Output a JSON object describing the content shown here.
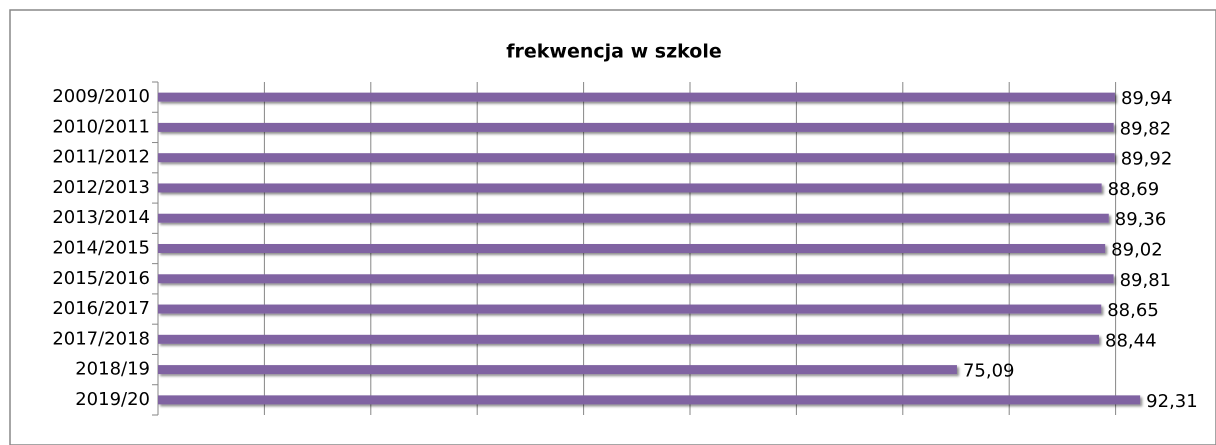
{
  "chart_data": {
    "type": "hbar",
    "title": "frekwencja w szkole",
    "categories": [
      "2009/2010",
      "2010/2011",
      "2011/2012",
      "2012/2013",
      "2013/2014",
      "2014/2015",
      "2015/2016",
      "2016/2017",
      "2017/2018",
      "2018/19",
      "2019/20"
    ],
    "values": [
      89.94,
      89.82,
      89.92,
      88.69,
      89.36,
      89.02,
      89.81,
      88.65,
      88.44,
      75.09,
      92.31
    ],
    "value_labels": [
      "89,94",
      "89,82",
      "89,92",
      "88,69",
      "89,36",
      "89,02",
      "89,81",
      "88,65",
      "88,44",
      "75,09",
      "92,31"
    ],
    "color": "#8064a2",
    "xlim": [
      0,
      100
    ],
    "xticks": [
      0,
      10,
      20,
      30,
      40,
      50,
      60,
      70,
      80,
      90
    ],
    "grid": true
  }
}
